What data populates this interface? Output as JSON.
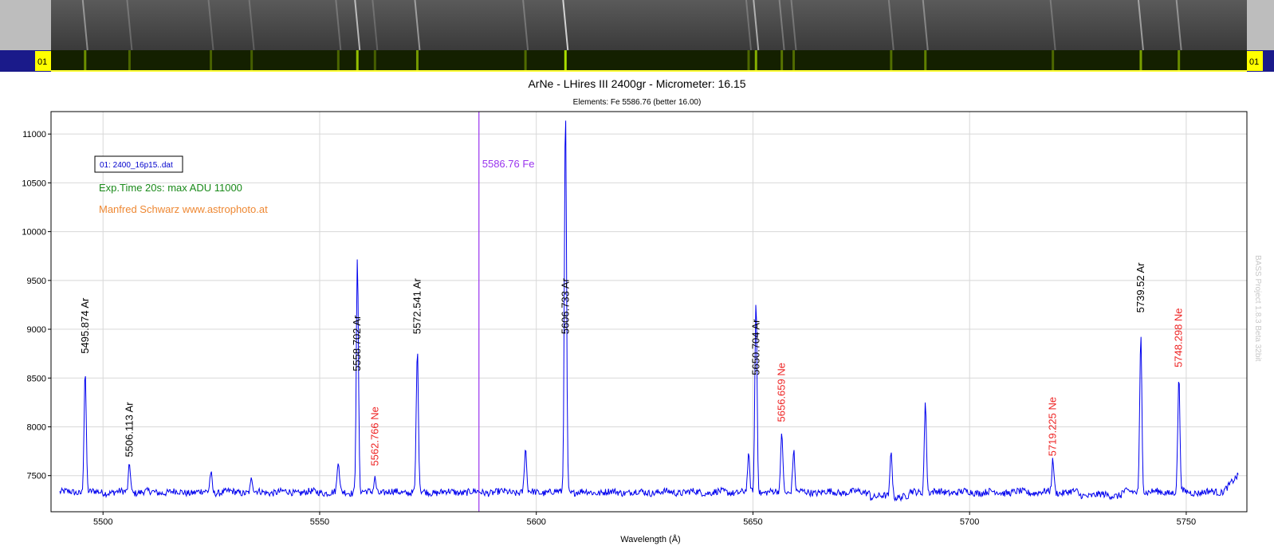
{
  "window": {
    "strip_label_left": "01",
    "strip_label_right": "01"
  },
  "chart_data": {
    "type": "line",
    "title": "ArNe - LHires III 2400gr - Micrometer: 16.15",
    "subtitle": "Elements: Fe 5586.76 (better 16.00)",
    "xlabel": "Wavelength (Å)",
    "ylabel": "",
    "xlim": [
      5488,
      5764
    ],
    "ylim": [
      7130,
      11230
    ],
    "x_ticks": [
      5500,
      5550,
      5600,
      5650,
      5700,
      5750
    ],
    "y_ticks": [
      7500,
      8000,
      8500,
      9000,
      9500,
      10000,
      10500,
      11000
    ],
    "grid": true,
    "file_label": "01: 2400_16p15..dat",
    "annotations": [
      {
        "text": "Exp.Time 20s: max ADU 11000",
        "color": "#1a8a1a"
      },
      {
        "text": "Manfred Schwarz www.astrophoto.at",
        "color": "#ee8833"
      }
    ],
    "side_credit": "BASS Project 1.8.3 Beta 32bit",
    "marker": {
      "x": 5586.76,
      "label": "5586.76 Fe",
      "color": "#9933ee"
    },
    "series": [
      {
        "color": "#0000ee",
        "baseline": 7330,
        "peaks": [
          {
            "x": 5495.874,
            "y": 8580
          },
          {
            "x": 5506.113,
            "y": 7620
          },
          {
            "x": 5524.9,
            "y": 7540
          },
          {
            "x": 5534.3,
            "y": 7470
          },
          {
            "x": 5554.3,
            "y": 7650
          },
          {
            "x": 5558.702,
            "y": 9700
          },
          {
            "x": 5562.766,
            "y": 7480
          },
          {
            "x": 5572.541,
            "y": 8780
          },
          {
            "x": 5597.5,
            "y": 7780
          },
          {
            "x": 5606.733,
            "y": 11230
          },
          {
            "x": 5649.0,
            "y": 7690
          },
          {
            "x": 5650.704,
            "y": 9310
          },
          {
            "x": 5656.659,
            "y": 7950
          },
          {
            "x": 5659.4,
            "y": 7760
          },
          {
            "x": 5681.9,
            "y": 7800
          },
          {
            "x": 5689.8,
            "y": 8250
          },
          {
            "x": 5719.225,
            "y": 7660
          },
          {
            "x": 5739.52,
            "y": 8940
          },
          {
            "x": 5748.298,
            "y": 8500
          }
        ]
      }
    ],
    "line_labels": [
      {
        "x": 5495.874,
        "text": "5495.874 Ar",
        "color": "#000000",
        "y_at": 8700
      },
      {
        "x": 5506.113,
        "text": "5506.113 Ar",
        "color": "#000000",
        "y_at": 7640
      },
      {
        "x": 5558.702,
        "text": "5558.702 Ar",
        "color": "#000000",
        "y_at": 8520
      },
      {
        "x": 5562.766,
        "text": "5562.766 Ne",
        "color": "#ee2222",
        "y_at": 7550
      },
      {
        "x": 5572.541,
        "text": "5572.541 Ar",
        "color": "#000000",
        "y_at": 8900
      },
      {
        "x": 5606.733,
        "text": "5606.733 Ar",
        "color": "#000000",
        "y_at": 8900
      },
      {
        "x": 5650.704,
        "text": "5650.704 Ar",
        "color": "#000000",
        "y_at": 8480
      },
      {
        "x": 5656.659,
        "text": "5656.659 Ne",
        "color": "#ee2222",
        "y_at": 8000
      },
      {
        "x": 5719.225,
        "text": "5719.225 Ne",
        "color": "#ee2222",
        "y_at": 7650
      },
      {
        "x": 5739.52,
        "text": "5739.52 Ar",
        "color": "#000000",
        "y_at": 9120
      },
      {
        "x": 5748.298,
        "text": "5748.298 Ne",
        "color": "#ee2222",
        "y_at": 8560
      }
    ]
  }
}
